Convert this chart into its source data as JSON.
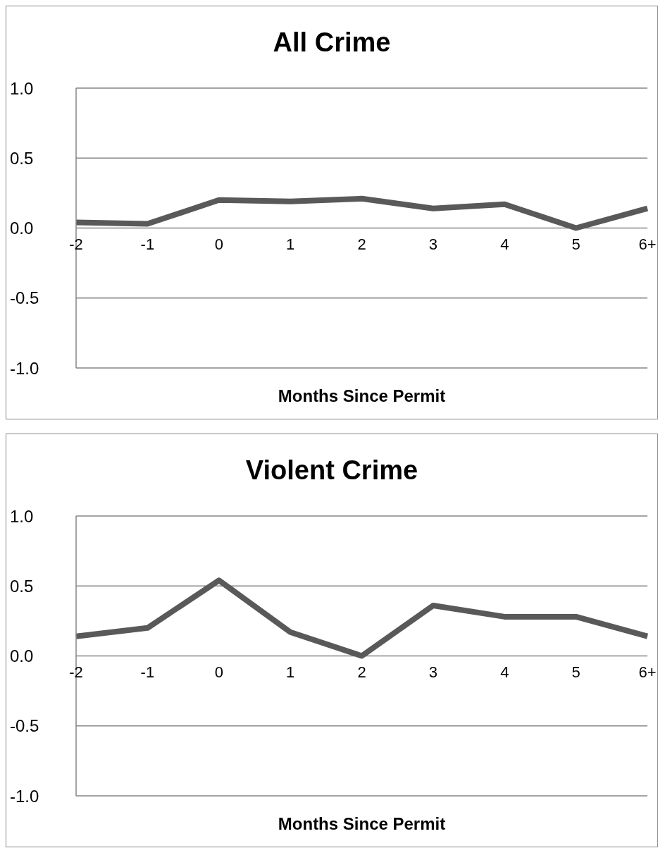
{
  "chart_data": [
    {
      "type": "line",
      "title": "All Crime",
      "xlabel": "Months Since Permit",
      "categories": [
        "-2",
        "-1",
        "0",
        "1",
        "2",
        "3",
        "4",
        "5",
        "6+"
      ],
      "series": [
        {
          "color": "#595959",
          "values": [
            0.04,
            0.03,
            0.2,
            0.19,
            0.21,
            0.14,
            0.17,
            0.0,
            0.14
          ]
        }
      ],
      "ylim": [
        -1.0,
        1.0
      ],
      "yticks": [
        {
          "value": -1,
          "label": "-1.0"
        },
        {
          "value": -0.5,
          "label": "-0.5"
        },
        {
          "value": 0,
          "label": "0.0"
        },
        {
          "value": 0.5,
          "label": "0.5"
        },
        {
          "value": 1,
          "label": "1.0"
        }
      ],
      "grid": "y",
      "marker": "none",
      "line_style": "solid",
      "legend": false
    },
    {
      "type": "line",
      "title": "Violent Crime",
      "xlabel": "Months Since Permit",
      "categories": [
        "-2",
        "-1",
        "0",
        "1",
        "2",
        "3",
        "4",
        "5",
        "6+"
      ],
      "series": [
        {
          "color": "#595959",
          "values": [
            0.14,
            0.2,
            0.54,
            0.17,
            0.0,
            0.36,
            0.28,
            0.28,
            0.14
          ]
        }
      ],
      "ylim": [
        -1.0,
        1.0
      ],
      "yticks": [
        {
          "value": -1,
          "label": "-1.0"
        },
        {
          "value": -0.5,
          "label": "-0.5"
        },
        {
          "value": 0,
          "label": "0.0"
        },
        {
          "value": 0.5,
          "label": "0.5"
        },
        {
          "value": 1,
          "label": "1.0"
        }
      ],
      "grid": "y",
      "marker": "none",
      "line_style": "solid",
      "legend": false
    }
  ]
}
